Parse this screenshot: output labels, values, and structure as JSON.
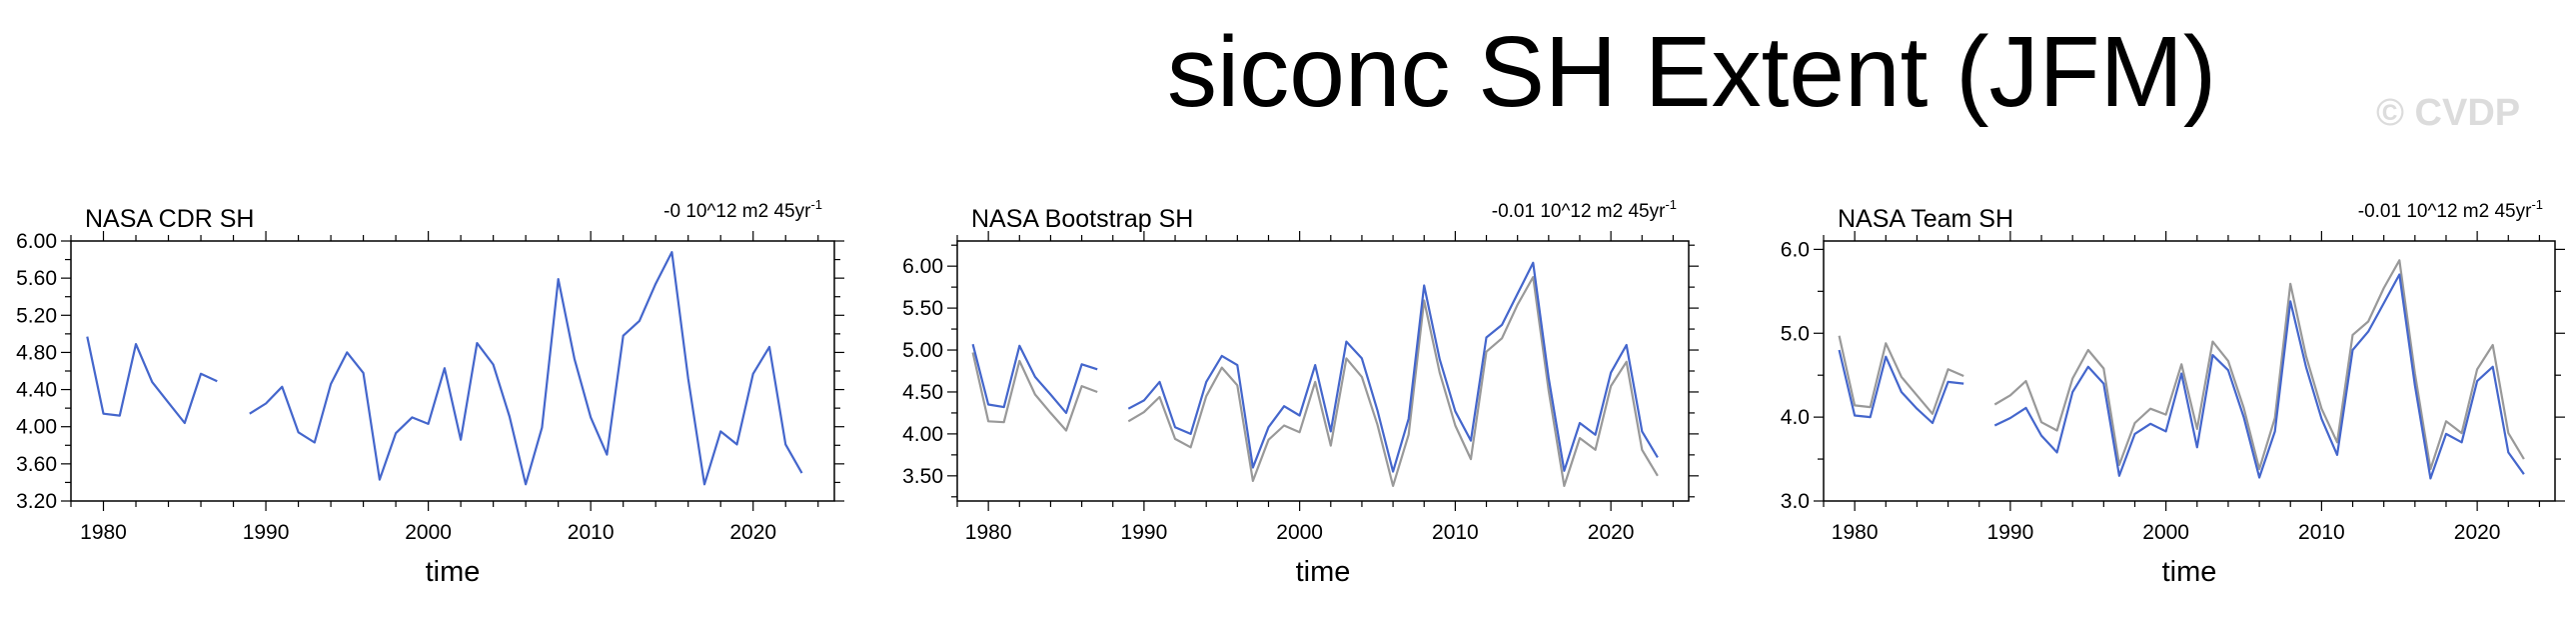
{
  "title": "siconc SH Extent (JFM)",
  "watermark": "© CVDP",
  "chart_data": [
    {
      "type": "line",
      "title": "NASA CDR SH",
      "trend_label": "-0 10^12 m2 45yr",
      "trend_exponent": "-1",
      "xlabel": "time",
      "ylabel": "",
      "xlim": [
        1978,
        2025
      ],
      "ylim": [
        3.2,
        6.0
      ],
      "xticks": [
        1980,
        1990,
        2000,
        2010,
        2020
      ],
      "xtick_labels": [
        "1980",
        "1990",
        "2000",
        "2010",
        "2020"
      ],
      "yticks": [
        3.2,
        3.6,
        4.0,
        4.4,
        4.8,
        5.2,
        5.6,
        6.0
      ],
      "ytick_labels": [
        "3.20",
        "3.60",
        "4.00",
        "4.40",
        "4.80",
        "5.20",
        "5.60",
        "6.00"
      ],
      "x": [
        1979,
        1980,
        1981,
        1982,
        1983,
        1984,
        1985,
        1986,
        1987,
        1988,
        1989,
        1990,
        1991,
        1992,
        1993,
        1994,
        1995,
        1996,
        1997,
        1998,
        1999,
        2000,
        2001,
        2002,
        2003,
        2004,
        2005,
        2006,
        2007,
        2008,
        2009,
        2010,
        2011,
        2012,
        2013,
        2014,
        2015,
        2016,
        2017,
        2018,
        2019,
        2020,
        2021,
        2022,
        2023
      ],
      "series": [
        {
          "color": "#4466cc",
          "values": [
            4.97,
            4.14,
            4.12,
            4.89,
            4.48,
            4.26,
            4.04,
            4.57,
            4.49,
            null,
            4.14,
            4.25,
            4.43,
            3.94,
            3.83,
            4.46,
            4.8,
            4.58,
            3.43,
            3.93,
            4.1,
            4.03,
            4.63,
            3.86,
            4.9,
            4.67,
            4.11,
            3.38,
            3.99,
            5.59,
            4.73,
            4.1,
            3.7,
            4.98,
            5.14,
            5.54,
            5.88,
            4.52,
            3.38,
            3.95,
            3.81,
            4.57,
            4.86,
            3.81,
            3.5
          ]
        }
      ]
    },
    {
      "type": "line",
      "title": "NASA Bootstrap SH",
      "trend_label": "-0.01 10^12 m2 45yr",
      "trend_exponent": "-1",
      "xlabel": "time",
      "ylabel": "",
      "xlim": [
        1978,
        2025
      ],
      "ylim": [
        3.2,
        6.3
      ],
      "xticks": [
        1980,
        1990,
        2000,
        2010,
        2020
      ],
      "xtick_labels": [
        "1980",
        "1990",
        "2000",
        "2010",
        "2020"
      ],
      "yticks": [
        3.5,
        4.0,
        4.5,
        5.0,
        5.5,
        6.0
      ],
      "ytick_labels": [
        "3.50",
        "4.00",
        "4.50",
        "5.00",
        "5.50",
        "6.00"
      ],
      "x": [
        1979,
        1980,
        1981,
        1982,
        1983,
        1984,
        1985,
        1986,
        1987,
        1988,
        1989,
        1990,
        1991,
        1992,
        1993,
        1994,
        1995,
        1996,
        1997,
        1998,
        1999,
        2000,
        2001,
        2002,
        2003,
        2004,
        2005,
        2006,
        2007,
        2008,
        2009,
        2010,
        2011,
        2012,
        2013,
        2014,
        2015,
        2016,
        2017,
        2018,
        2019,
        2020,
        2021,
        2022,
        2023
      ],
      "series": [
        {
          "color": "#999999",
          "values": [
            4.97,
            4.15,
            4.14,
            4.87,
            4.47,
            4.25,
            4.04,
            4.57,
            4.5,
            null,
            4.15,
            4.26,
            4.44,
            3.94,
            3.84,
            4.45,
            4.79,
            4.58,
            3.44,
            3.93,
            4.1,
            4.02,
            4.62,
            3.86,
            4.9,
            4.68,
            4.11,
            3.38,
            3.99,
            5.59,
            4.73,
            4.1,
            3.7,
            4.98,
            5.14,
            5.54,
            5.87,
            4.52,
            3.38,
            3.95,
            3.81,
            4.57,
            4.86,
            3.81,
            3.5
          ]
        },
        {
          "color": "#4466cc",
          "values": [
            5.07,
            4.35,
            4.32,
            5.05,
            4.68,
            4.47,
            4.25,
            4.83,
            4.77,
            null,
            4.3,
            4.4,
            4.62,
            4.08,
            4.0,
            4.62,
            4.93,
            4.82,
            3.6,
            4.08,
            4.33,
            4.22,
            4.82,
            4.03,
            5.1,
            4.9,
            4.28,
            3.55,
            4.18,
            5.77,
            4.89,
            4.27,
            3.92,
            5.15,
            5.3,
            5.67,
            6.04,
            4.67,
            3.56,
            4.13,
            3.99,
            4.73,
            5.06,
            4.03,
            3.72
          ]
        }
      ]
    },
    {
      "type": "line",
      "title": "NASA Team SH",
      "trend_label": "-0.01 10^12 m2 45yr",
      "trend_exponent": "-1",
      "xlabel": "time",
      "ylabel": "",
      "xlim": [
        1978,
        2025
      ],
      "ylim": [
        3.0,
        6.1
      ],
      "xticks": [
        1980,
        1990,
        2000,
        2010,
        2020
      ],
      "xtick_labels": [
        "1980",
        "1990",
        "2000",
        "2010",
        "2020"
      ],
      "yticks": [
        3.0,
        4.0,
        5.0,
        6.0
      ],
      "ytick_labels": [
        "3.0",
        "4.0",
        "5.0",
        "6.0"
      ],
      "x": [
        1979,
        1980,
        1981,
        1982,
        1983,
        1984,
        1985,
        1986,
        1987,
        1988,
        1989,
        1990,
        1991,
        1992,
        1993,
        1994,
        1995,
        1996,
        1997,
        1998,
        1999,
        2000,
        2001,
        2002,
        2003,
        2004,
        2005,
        2006,
        2007,
        2008,
        2009,
        2010,
        2011,
        2012,
        2013,
        2014,
        2015,
        2016,
        2017,
        2018,
        2019,
        2020,
        2021,
        2022,
        2023
      ],
      "series": [
        {
          "color": "#999999",
          "values": [
            4.97,
            4.14,
            4.12,
            4.88,
            4.48,
            4.26,
            4.04,
            4.57,
            4.49,
            null,
            4.15,
            4.26,
            4.43,
            3.94,
            3.84,
            4.46,
            4.8,
            4.58,
            3.43,
            3.93,
            4.1,
            4.03,
            4.63,
            3.86,
            4.9,
            4.67,
            4.11,
            3.38,
            3.99,
            5.59,
            4.73,
            4.1,
            3.7,
            4.98,
            5.14,
            5.54,
            5.87,
            4.52,
            3.38,
            3.95,
            3.81,
            4.57,
            4.86,
            3.81,
            3.5
          ]
        },
        {
          "color": "#4466cc",
          "values": [
            4.8,
            4.02,
            4.0,
            4.72,
            4.3,
            4.1,
            3.93,
            4.42,
            4.4,
            null,
            3.9,
            3.99,
            4.11,
            3.78,
            3.58,
            4.3,
            4.6,
            4.4,
            3.3,
            3.8,
            3.92,
            3.83,
            4.52,
            3.64,
            4.74,
            4.56,
            4.0,
            3.28,
            3.83,
            5.38,
            4.6,
            3.98,
            3.55,
            4.8,
            5.02,
            5.36,
            5.7,
            4.38,
            3.27,
            3.8,
            3.7,
            4.43,
            4.6,
            3.58,
            3.32
          ]
        }
      ]
    }
  ]
}
